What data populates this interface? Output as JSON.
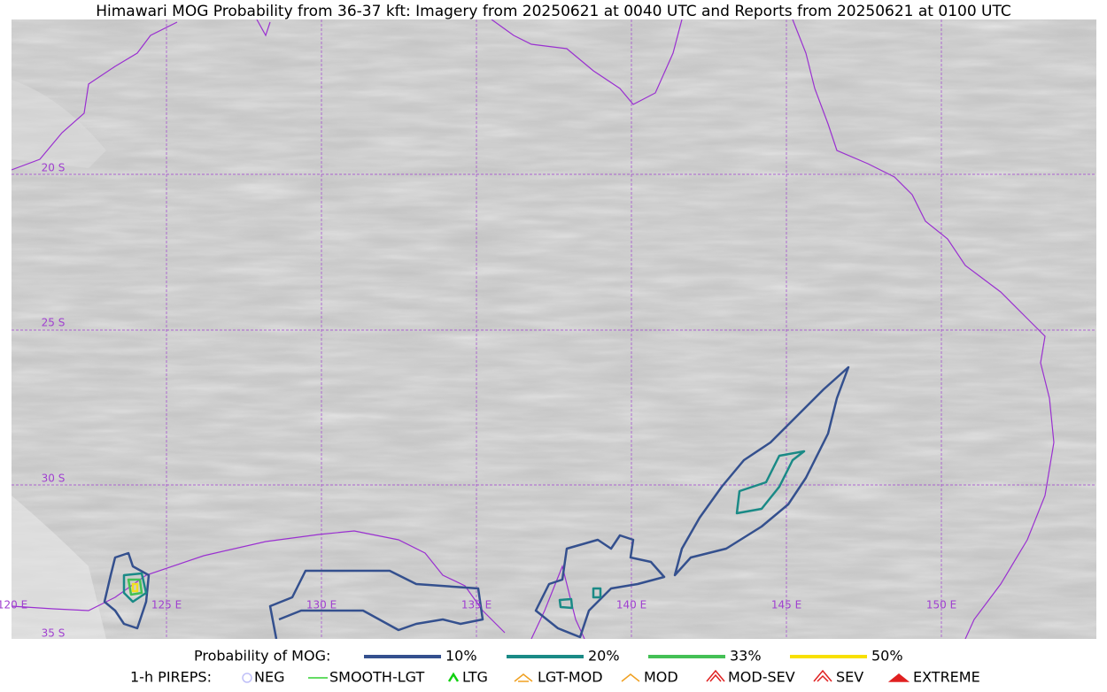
{
  "title": "Himawari MOG Probability from 36-37 kft: Imagery from 20250621 at 0040 UTC and Reports from 20250621 at 0100 UTC",
  "map": {
    "lat_labels": [
      "20 S",
      "25 S",
      "30 S",
      "35 S"
    ],
    "lon_labels": [
      "120 E",
      "125 E",
      "130 E",
      "135 E",
      "140 E",
      "145 E",
      "150 E"
    ]
  },
  "legend": {
    "probability": {
      "title": "Probability of MOG:",
      "items": [
        "10%",
        "20%",
        "33%",
        "50%"
      ]
    },
    "pireps": {
      "title": "1-h PIREPS:",
      "items": [
        "NEG",
        "SMOOTH-LGT",
        "LTG",
        "LGT-MOD",
        "MOD",
        "MOD-SEV",
        "SEV",
        "EXTREME"
      ]
    }
  }
}
